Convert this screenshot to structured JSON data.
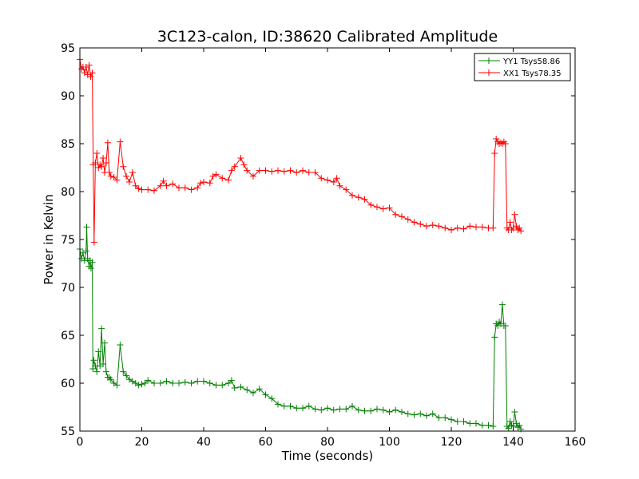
{
  "chart_data": {
    "type": "line",
    "title": "3C123-calon, ID:38620 Calibrated Amplitude",
    "xlabel": "Time (seconds)",
    "ylabel": "Power in Kelvin",
    "xlim": [
      0,
      160
    ],
    "ylim": [
      55,
      95
    ],
    "xticks": [
      0,
      20,
      40,
      60,
      80,
      100,
      120,
      140,
      160
    ],
    "yticks": [
      55,
      60,
      65,
      70,
      75,
      80,
      85,
      90,
      95
    ],
    "grid": false,
    "legend_placement": "top-right",
    "marker": "plus",
    "series": [
      {
        "name": "YY1 Tsys58.86",
        "color": "#008000",
        "points": [
          [
            0,
            74.0
          ],
          [
            0.5,
            73.0
          ],
          [
            1,
            73.6
          ],
          [
            1.5,
            72.8
          ],
          [
            2,
            73.8
          ],
          [
            2.2,
            76.3
          ],
          [
            2.5,
            73.0
          ],
          [
            3,
            72.2
          ],
          [
            3.3,
            72.8
          ],
          [
            3.6,
            72.0
          ],
          [
            4,
            72.6
          ],
          [
            4.2,
            61.5
          ],
          [
            4.5,
            62.4
          ],
          [
            5,
            61.8
          ],
          [
            5.5,
            61.2
          ],
          [
            6,
            63.3
          ],
          [
            6.5,
            61.8
          ],
          [
            7,
            65.7
          ],
          [
            7.5,
            62.0
          ],
          [
            8,
            64.2
          ],
          [
            8.5,
            61.2
          ],
          [
            9,
            60.6
          ],
          [
            9.5,
            60.6
          ],
          [
            10,
            60.4
          ],
          [
            11,
            60.0
          ],
          [
            12,
            59.8
          ],
          [
            13,
            64.0
          ],
          [
            14,
            61.2
          ],
          [
            15,
            60.8
          ],
          [
            16,
            60.4
          ],
          [
            17,
            60.2
          ],
          [
            18,
            60.0
          ],
          [
            19,
            59.8
          ],
          [
            20,
            59.9
          ],
          [
            21,
            60.0
          ],
          [
            22,
            60.3
          ],
          [
            24,
            60.0
          ],
          [
            26,
            60.0
          ],
          [
            28,
            60.2
          ],
          [
            30,
            60.0
          ],
          [
            32,
            60.0
          ],
          [
            34,
            60.1
          ],
          [
            36,
            60.0
          ],
          [
            38,
            60.2
          ],
          [
            40,
            60.2
          ],
          [
            42,
            60.0
          ],
          [
            44,
            59.8
          ],
          [
            46,
            59.8
          ],
          [
            48,
            60.0
          ],
          [
            49,
            60.3
          ],
          [
            50,
            59.5
          ],
          [
            52,
            59.6
          ],
          [
            54,
            59.3
          ],
          [
            56,
            59.0
          ],
          [
            58,
            59.4
          ],
          [
            60,
            58.8
          ],
          [
            62,
            58.4
          ],
          [
            64,
            57.8
          ],
          [
            66,
            57.6
          ],
          [
            68,
            57.6
          ],
          [
            70,
            57.4
          ],
          [
            72,
            57.4
          ],
          [
            74,
            57.6
          ],
          [
            76,
            57.3
          ],
          [
            78,
            57.2
          ],
          [
            80,
            57.4
          ],
          [
            82,
            57.2
          ],
          [
            84,
            57.3
          ],
          [
            86,
            57.3
          ],
          [
            88,
            57.6
          ],
          [
            90,
            57.2
          ],
          [
            92,
            57.1
          ],
          [
            94,
            57.1
          ],
          [
            96,
            57.3
          ],
          [
            98,
            57.2
          ],
          [
            100,
            57.0
          ],
          [
            102,
            57.2
          ],
          [
            104,
            57.0
          ],
          [
            106,
            56.8
          ],
          [
            108,
            56.7
          ],
          [
            110,
            56.8
          ],
          [
            112,
            56.6
          ],
          [
            114,
            56.8
          ],
          [
            116,
            56.4
          ],
          [
            118,
            56.4
          ],
          [
            120,
            56.2
          ],
          [
            122,
            56.0
          ],
          [
            124,
            56.0
          ],
          [
            126,
            55.8
          ],
          [
            128,
            55.8
          ],
          [
            130,
            55.6
          ],
          [
            132,
            55.6
          ],
          [
            133.5,
            55.5
          ],
          [
            134,
            64.8
          ],
          [
            134.5,
            66.2
          ],
          [
            135,
            66.0
          ],
          [
            135.5,
            66.4
          ],
          [
            136,
            66.2
          ],
          [
            136.5,
            68.2
          ],
          [
            137,
            66.0
          ],
          [
            137.5,
            66.0
          ],
          [
            138,
            55.5
          ],
          [
            138.5,
            55.3
          ],
          [
            139,
            56.0
          ],
          [
            139.5,
            55.6
          ],
          [
            140,
            55.5
          ],
          [
            140.5,
            57.0
          ],
          [
            141,
            55.8
          ],
          [
            141.5,
            55.4
          ],
          [
            142,
            55.6
          ],
          [
            142.5,
            55.2
          ]
        ]
      },
      {
        "name": "XX1 Tsys78.35",
        "color": "#ff0000",
        "points": [
          [
            0,
            93.8
          ],
          [
            0.5,
            92.8
          ],
          [
            1,
            93.0
          ],
          [
            1.5,
            92.4
          ],
          [
            2,
            93.0
          ],
          [
            2.5,
            92.2
          ],
          [
            3,
            93.2
          ],
          [
            3.5,
            92.0
          ],
          [
            4,
            92.4
          ],
          [
            4.3,
            82.8
          ],
          [
            4.6,
            74.7
          ],
          [
            5,
            83.0
          ],
          [
            5.5,
            84.0
          ],
          [
            6,
            82.5
          ],
          [
            6.5,
            82.8
          ],
          [
            7,
            82.6
          ],
          [
            7.5,
            83.5
          ],
          [
            8,
            82.0
          ],
          [
            8.5,
            83.0
          ],
          [
            9,
            85.1
          ],
          [
            9.5,
            82.0
          ],
          [
            10,
            81.6
          ],
          [
            11,
            81.5
          ],
          [
            12,
            81.2
          ],
          [
            13,
            85.2
          ],
          [
            14,
            82.6
          ],
          [
            15,
            81.6
          ],
          [
            16,
            81.0
          ],
          [
            17,
            82.0
          ],
          [
            18,
            80.6
          ],
          [
            19,
            80.3
          ],
          [
            20,
            80.2
          ],
          [
            22,
            80.2
          ],
          [
            24,
            80.1
          ],
          [
            26,
            80.6
          ],
          [
            27,
            81.1
          ],
          [
            28,
            80.6
          ],
          [
            30,
            80.8
          ],
          [
            32,
            80.4
          ],
          [
            34,
            80.4
          ],
          [
            36,
            80.2
          ],
          [
            38,
            80.4
          ],
          [
            39,
            80.9
          ],
          [
            40,
            81.0
          ],
          [
            42,
            80.9
          ],
          [
            43,
            81.6
          ],
          [
            44,
            81.8
          ],
          [
            46,
            81.4
          ],
          [
            48,
            81.2
          ],
          [
            49,
            82.2
          ],
          [
            50,
            82.6
          ],
          [
            52,
            83.5
          ],
          [
            53,
            82.8
          ],
          [
            54,
            82.2
          ],
          [
            56,
            81.6
          ],
          [
            58,
            82.2
          ],
          [
            60,
            82.2
          ],
          [
            62,
            82.1
          ],
          [
            64,
            82.2
          ],
          [
            66,
            82.1
          ],
          [
            68,
            82.2
          ],
          [
            70,
            82.0
          ],
          [
            72,
            82.2
          ],
          [
            74,
            82.0
          ],
          [
            76,
            82.0
          ],
          [
            78,
            81.4
          ],
          [
            80,
            81.2
          ],
          [
            82,
            81.0
          ],
          [
            83,
            81.4
          ],
          [
            84,
            80.6
          ],
          [
            86,
            80.2
          ],
          [
            88,
            79.6
          ],
          [
            90,
            79.4
          ],
          [
            92,
            79.2
          ],
          [
            94,
            78.6
          ],
          [
            96,
            78.4
          ],
          [
            98,
            78.2
          ],
          [
            100,
            78.3
          ],
          [
            102,
            77.6
          ],
          [
            104,
            77.4
          ],
          [
            106,
            77.1
          ],
          [
            108,
            76.8
          ],
          [
            110,
            76.6
          ],
          [
            112,
            76.4
          ],
          [
            114,
            76.5
          ],
          [
            116,
            76.4
          ],
          [
            118,
            76.2
          ],
          [
            120,
            76.0
          ],
          [
            122,
            76.2
          ],
          [
            124,
            76.1
          ],
          [
            126,
            76.4
          ],
          [
            128,
            76.3
          ],
          [
            130,
            76.3
          ],
          [
            132,
            76.2
          ],
          [
            133.5,
            76.2
          ],
          [
            134,
            84.0
          ],
          [
            134.5,
            85.5
          ],
          [
            135,
            85.2
          ],
          [
            135.5,
            85.0
          ],
          [
            136,
            85.1
          ],
          [
            136.5,
            85.0
          ],
          [
            137,
            85.2
          ],
          [
            137.5,
            85.0
          ],
          [
            138,
            76.2
          ],
          [
            138.5,
            76.0
          ],
          [
            139,
            76.8
          ],
          [
            139.5,
            76.0
          ],
          [
            140,
            76.2
          ],
          [
            140.5,
            77.6
          ],
          [
            141,
            76.4
          ],
          [
            141.5,
            76.0
          ],
          [
            142,
            76.2
          ],
          [
            142.5,
            75.9
          ]
        ]
      }
    ]
  }
}
